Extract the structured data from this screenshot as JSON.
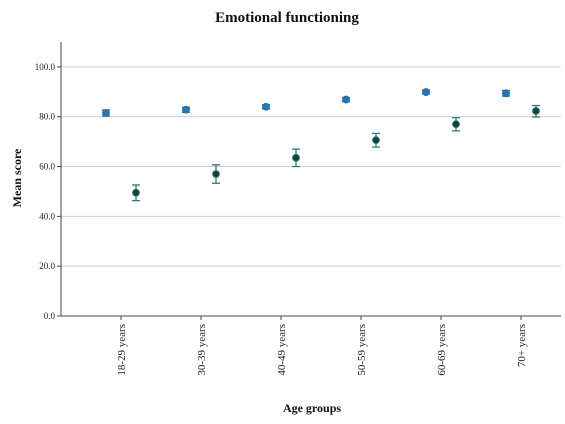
{
  "chart_data": {
    "type": "scatter",
    "title": "Emotional functioning",
    "xlabel": "Age groups",
    "ylabel": "Mean score",
    "categories": [
      "18-29 years",
      "30-39 years",
      "40-49 years",
      "50-59 years",
      "60-69 years",
      "70+ years"
    ],
    "ylim": [
      0,
      110
    ],
    "yticks": [
      0,
      20,
      40,
      60,
      80,
      100
    ],
    "ytick_labels": [
      "0.0",
      "20.0",
      "40.0",
      "60.0",
      "80.0",
      "100.0"
    ],
    "grid": "horizontal",
    "series": [
      {
        "color": "#1f77c4",
        "edge": "#2a6f96",
        "values": [
          81.5,
          82.8,
          84.0,
          86.9,
          89.9,
          89.4
        ],
        "ci_low": [
          80.3,
          81.8,
          83.2,
          86.1,
          89.1,
          88.3
        ],
        "ci_high": [
          82.7,
          83.8,
          84.8,
          87.7,
          90.7,
          90.5
        ]
      },
      {
        "color": "#123f3f",
        "edge": "#2e7a72",
        "values": [
          49.5,
          57.0,
          63.5,
          70.6,
          77.0,
          82.3
        ],
        "ci_low": [
          46.3,
          53.3,
          60.0,
          67.8,
          74.3,
          79.9
        ],
        "ci_high": [
          52.6,
          60.7,
          67.0,
          73.3,
          79.6,
          84.5
        ]
      }
    ]
  }
}
